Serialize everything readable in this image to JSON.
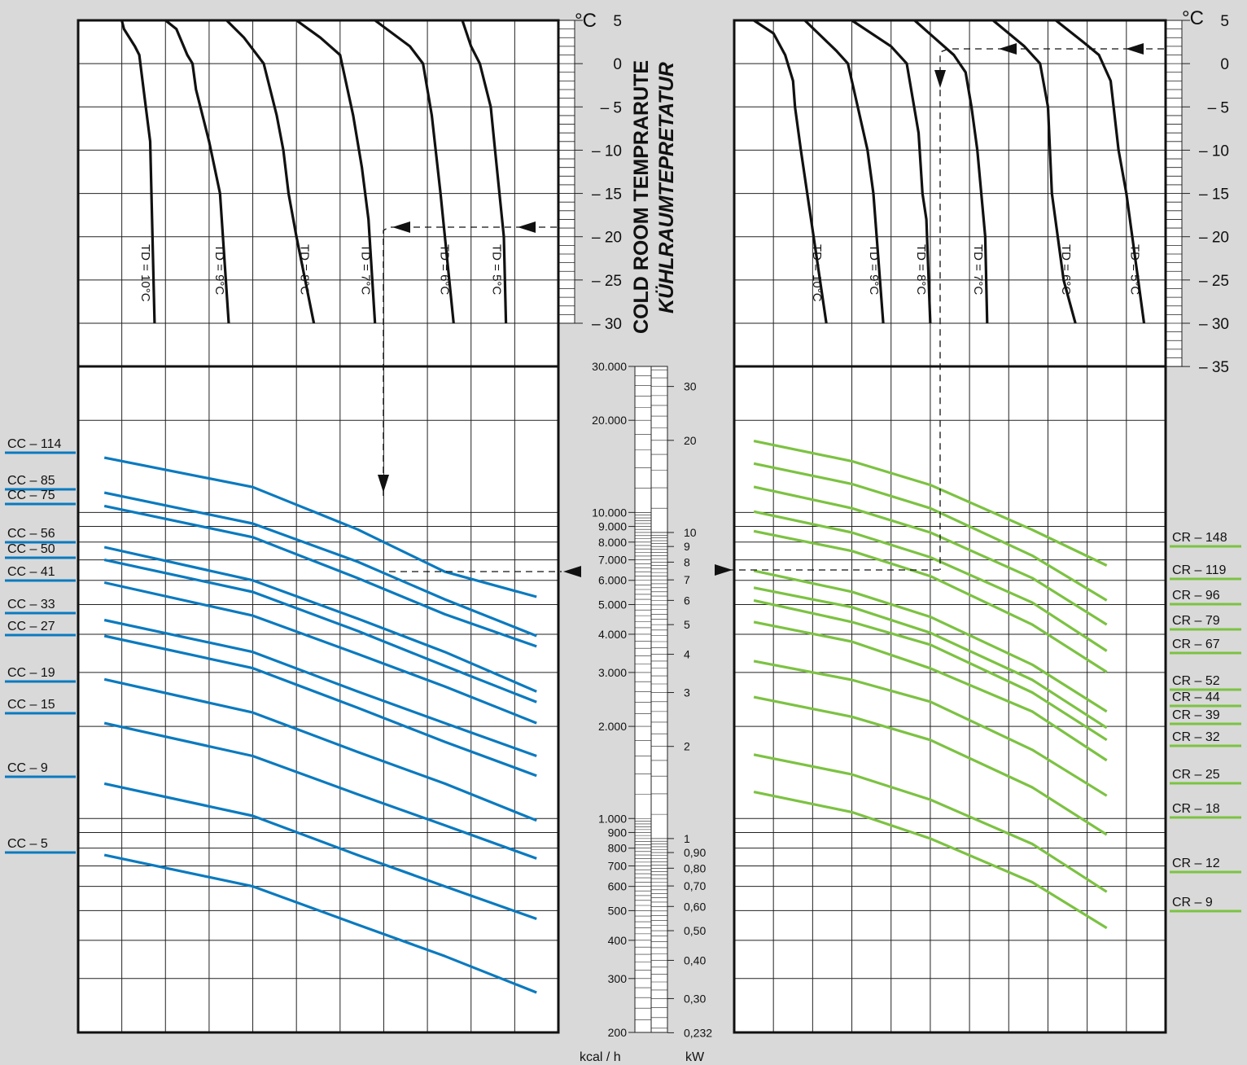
{
  "chart_data": [
    {
      "type": "line",
      "panel": "left",
      "unit_label": "°C",
      "title_line1": "COLD ROOM TEMPRARUTE",
      "title_line2": "KÜHLRAUMTEPRETATUR",
      "temp_ticks": [
        "5",
        "0",
        "– 5",
        "– 10",
        "– 15",
        "– 20",
        "– 25",
        "– 30"
      ],
      "temp_values": [
        5,
        0,
        -5,
        -10,
        -15,
        -20,
        -25,
        -30
      ],
      "td_curves": [
        {
          "label": "TD = 10°C",
          "points": [
            [
              1,
              5
            ],
            [
              1.05,
              4
            ],
            [
              1.3,
              2
            ],
            [
              1.4,
              1
            ],
            [
              1.55,
              -5
            ],
            [
              1.65,
              -9
            ],
            [
              1.75,
              -30
            ]
          ]
        },
        {
          "label": "TD = 9°C",
          "points": [
            [
              2,
              5
            ],
            [
              2.25,
              4
            ],
            [
              2.5,
              1
            ],
            [
              2.62,
              0
            ],
            [
              2.7,
              -3
            ],
            [
              3,
              -9
            ],
            [
              3.25,
              -15
            ],
            [
              3.45,
              -30
            ]
          ]
        },
        {
          "label": "TD = 8°C",
          "points": [
            [
              3.4,
              5
            ],
            [
              3.8,
              3
            ],
            [
              4.25,
              0
            ],
            [
              4.55,
              -6
            ],
            [
              4.7,
              -10
            ],
            [
              4.82,
              -15
            ],
            [
              5,
              -20
            ],
            [
              5.4,
              -30
            ]
          ]
        },
        {
          "label": "TD = 7°C",
          "points": [
            [
              5,
              5
            ],
            [
              5.55,
              3
            ],
            [
              6,
              1
            ],
            [
              6.3,
              -6
            ],
            [
              6.5,
              -12
            ],
            [
              6.65,
              -18
            ],
            [
              6.8,
              -30
            ]
          ]
        },
        {
          "label": "TD = 6°C",
          "points": [
            [
              6.8,
              5
            ],
            [
              7.6,
              2
            ],
            [
              7.9,
              0
            ],
            [
              8.1,
              -6
            ],
            [
              8.3,
              -15
            ],
            [
              8.6,
              -30
            ]
          ]
        },
        {
          "label": "TD = 5°C",
          "points": [
            [
              8.8,
              5
            ],
            [
              9,
              2
            ],
            [
              9.2,
              0
            ],
            [
              9.45,
              -5
            ],
            [
              9.55,
              -10
            ],
            [
              9.75,
              -20
            ],
            [
              9.8,
              -30
            ]
          ]
        }
      ],
      "capacity_axis_label": "kcal / h",
      "series": [
        {
          "name": "CC – 114",
          "values": [
            [
              0.6,
              15100
            ],
            [
              4,
              12100
            ],
            [
              6.4,
              8800
            ],
            [
              8.4,
              6400
            ],
            [
              10.5,
              5300
            ]
          ]
        },
        {
          "name": "CC – 85",
          "values": [
            [
              0.6,
              11600
            ],
            [
              4,
              9200
            ],
            [
              6.4,
              6900
            ],
            [
              8.4,
              5200
            ],
            [
              10.5,
              3950
            ]
          ]
        },
        {
          "name": "CC – 75",
          "values": [
            [
              0.6,
              10500
            ],
            [
              4,
              8300
            ],
            [
              6.4,
              6100
            ],
            [
              8.4,
              4650
            ],
            [
              10.5,
              3650
            ]
          ]
        },
        {
          "name": "CC – 56",
          "values": [
            [
              0.6,
              7700
            ],
            [
              4,
              6000
            ],
            [
              6.4,
              4500
            ],
            [
              8.4,
              3500
            ],
            [
              10.5,
              2600
            ]
          ]
        },
        {
          "name": "CC – 50",
          "values": [
            [
              0.6,
              7000
            ],
            [
              4,
              5500
            ],
            [
              6.4,
              4100
            ],
            [
              8.4,
              3150
            ],
            [
              10.5,
              2400
            ]
          ]
        },
        {
          "name": "CC – 41",
          "values": [
            [
              0.6,
              5900
            ],
            [
              4,
              4600
            ],
            [
              6.4,
              3450
            ],
            [
              8.4,
              2700
            ],
            [
              10.5,
              2050
            ]
          ]
        },
        {
          "name": "CC – 33",
          "values": [
            [
              0.6,
              4450
            ],
            [
              4,
              3500
            ],
            [
              6.4,
              2600
            ],
            [
              8.4,
              2050
            ],
            [
              10.5,
              1600
            ]
          ]
        },
        {
          "name": "CC – 27",
          "values": [
            [
              0.6,
              3950
            ],
            [
              4,
              3100
            ],
            [
              6.4,
              2300
            ],
            [
              8.4,
              1780
            ],
            [
              10.5,
              1380
            ]
          ]
        },
        {
          "name": "CC – 19",
          "values": [
            [
              0.6,
              2850
            ],
            [
              4,
              2220
            ],
            [
              6.4,
              1650
            ],
            [
              8.4,
              1300
            ],
            [
              10.5,
              985
            ]
          ]
        },
        {
          "name": "CC – 15",
          "values": [
            [
              0.6,
              2050
            ],
            [
              4,
              1600
            ],
            [
              6.4,
              1200
            ],
            [
              8.4,
              950
            ],
            [
              10.5,
              740
            ]
          ]
        },
        {
          "name": "CC – 9",
          "values": [
            [
              0.6,
              1300
            ],
            [
              4,
              1020
            ],
            [
              6.4,
              760
            ],
            [
              8.4,
              600
            ],
            [
              10.5,
              470
            ]
          ]
        },
        {
          "name": "CC – 5",
          "values": [
            [
              0.6,
              760
            ],
            [
              4,
              600
            ],
            [
              6.4,
              450
            ],
            [
              8.4,
              355
            ],
            [
              10.5,
              270
            ]
          ]
        }
      ]
    },
    {
      "type": "line",
      "panel": "right",
      "unit_label": "°C",
      "temp_ticks": [
        "5",
        "0",
        "– 5",
        "– 10",
        "– 15",
        "– 20",
        "– 25",
        "– 30",
        "– 35"
      ],
      "temp_values": [
        5,
        0,
        -5,
        -10,
        -15,
        -20,
        -25,
        -30,
        -35
      ],
      "td_curves": [
        {
          "label": "TD = 10°C",
          "points": [
            [
              0.5,
              5
            ],
            [
              1,
              3.5
            ],
            [
              1.3,
              1
            ],
            [
              1.5,
              -2
            ],
            [
              1.55,
              -5
            ],
            [
              1.7,
              -10
            ],
            [
              2.35,
              -30
            ]
          ]
        },
        {
          "label": "TD = 9°C",
          "points": [
            [
              1.8,
              5
            ],
            [
              2.6,
              1.5
            ],
            [
              2.9,
              0
            ],
            [
              3.1,
              -4
            ],
            [
              3.4,
              -10
            ],
            [
              3.55,
              -15
            ],
            [
              3.8,
              -30
            ]
          ]
        },
        {
          "label": "TD = 8°C",
          "points": [
            [
              3,
              5
            ],
            [
              4,
              2
            ],
            [
              4.4,
              0
            ],
            [
              4.7,
              -8
            ],
            [
              4.8,
              -15
            ],
            [
              4.9,
              -18
            ],
            [
              5,
              -30
            ]
          ]
        },
        {
          "label": "TD = 7°C",
          "points": [
            [
              4.6,
              5
            ],
            [
              5.6,
              1
            ],
            [
              5.9,
              -1
            ],
            [
              6.05,
              -5
            ],
            [
              6.2,
              -10
            ],
            [
              6.4,
              -20
            ],
            [
              6.45,
              -30
            ]
          ]
        },
        {
          "label": "TD = 6°C",
          "points": [
            [
              6.6,
              5
            ],
            [
              7.4,
              2
            ],
            [
              7.8,
              0
            ],
            [
              8,
              -5
            ],
            [
              8.1,
              -15
            ],
            [
              8.4,
              -25
            ],
            [
              8.7,
              -30
            ]
          ]
        },
        {
          "label": "TD = 5°C",
          "points": [
            [
              8.2,
              5
            ],
            [
              8.9,
              2.5
            ],
            [
              9.3,
              1
            ],
            [
              9.6,
              -2
            ],
            [
              9.8,
              -10
            ],
            [
              10,
              -15
            ],
            [
              10.3,
              -25
            ],
            [
              10.45,
              -30
            ]
          ]
        }
      ],
      "capacity_axis_label": "kW",
      "series": [
        {
          "name": "CR – 148",
          "values": [
            [
              0.5,
              19.9
            ],
            [
              3,
              17.1
            ],
            [
              5,
              14.3
            ],
            [
              7.6,
              10.2
            ],
            [
              9.5,
              7.8
            ]
          ]
        },
        {
          "name": "CR – 119",
          "values": [
            [
              0.5,
              16.8
            ],
            [
              3,
              14.4
            ],
            [
              5,
              12.0
            ],
            [
              7.6,
              8.4
            ],
            [
              9.5,
              6.0
            ]
          ]
        },
        {
          "name": "CR – 96",
          "values": [
            [
              0.5,
              14.1
            ],
            [
              3,
              12.0
            ],
            [
              5,
              10.0
            ],
            [
              7.6,
              7.1
            ],
            [
              9.5,
              5.0
            ]
          ]
        },
        {
          "name": "CR – 79",
          "values": [
            [
              0.5,
              11.7
            ],
            [
              3,
              10.0
            ],
            [
              5,
              8.3
            ],
            [
              7.6,
              5.9
            ],
            [
              9.5,
              4.1
            ]
          ]
        },
        {
          "name": "CR – 67",
          "values": [
            [
              0.5,
              10.1
            ],
            [
              3,
              8.7
            ],
            [
              5,
              7.2
            ],
            [
              7.6,
              5.0
            ],
            [
              9.5,
              3.5
            ]
          ]
        },
        {
          "name": "CR – 52",
          "values": [
            [
              0.5,
              7.5
            ],
            [
              3,
              6.4
            ],
            [
              5,
              5.3
            ],
            [
              7.6,
              3.7
            ],
            [
              9.5,
              2.6
            ]
          ]
        },
        {
          "name": "CR – 44",
          "values": [
            [
              0.5,
              6.6
            ],
            [
              3,
              5.7
            ],
            [
              5,
              4.7
            ],
            [
              7.6,
              3.3
            ],
            [
              9.5,
              2.3
            ]
          ]
        },
        {
          "name": "CR – 39",
          "values": [
            [
              0.5,
              6.0
            ],
            [
              3,
              5.1
            ],
            [
              5,
              4.3
            ],
            [
              7.6,
              3.0
            ],
            [
              9.5,
              2.1
            ]
          ]
        },
        {
          "name": "CR – 32",
          "values": [
            [
              0.5,
              5.1
            ],
            [
              3,
              4.4
            ],
            [
              5,
              3.6
            ],
            [
              7.6,
              2.6
            ],
            [
              9.5,
              1.8
            ]
          ]
        },
        {
          "name": "CR – 25",
          "values": [
            [
              0.5,
              3.8
            ],
            [
              3,
              3.3
            ],
            [
              5,
              2.8
            ],
            [
              7.6,
              1.95
            ],
            [
              9.5,
              1.38
            ]
          ]
        },
        {
          "name": "CR – 18",
          "values": [
            [
              0.5,
              2.9
            ],
            [
              3,
              2.5
            ],
            [
              5,
              2.1
            ],
            [
              7.6,
              1.47
            ],
            [
              9.5,
              1.03
            ]
          ]
        },
        {
          "name": "CR – 12",
          "values": [
            [
              0.5,
              1.88
            ],
            [
              3,
              1.62
            ],
            [
              5,
              1.34
            ],
            [
              7.6,
              0.96
            ],
            [
              9.5,
              0.67
            ]
          ]
        },
        {
          "name": "CR – 9",
          "values": [
            [
              0.5,
              1.42
            ],
            [
              3,
              1.22
            ],
            [
              5,
              1.0
            ],
            [
              7.6,
              0.72
            ],
            [
              9.5,
              0.51
            ]
          ]
        }
      ]
    }
  ],
  "center_scale": {
    "kcal_labels": [
      "30.000",
      "20.000",
      "10.000",
      "9.000",
      "8.000",
      "7.000",
      "6.000",
      "5.000",
      "4.000",
      "3.000",
      "2.000",
      "1.000",
      "900",
      "800",
      "700",
      "600",
      "500",
      "400",
      "300",
      "200"
    ],
    "kcal_values": [
      30000,
      20000,
      10000,
      9000,
      8000,
      7000,
      6000,
      5000,
      4000,
      3000,
      2000,
      1000,
      900,
      800,
      700,
      600,
      500,
      400,
      300,
      200
    ],
    "kw_labels": [
      "30",
      "20",
      "10",
      "9",
      "8",
      "7",
      "6",
      "5",
      "4",
      "3",
      "2",
      "1",
      "0,90",
      "0,80",
      "0,70",
      "0,60",
      "0,50",
      "0,40",
      "0,30",
      "0,232"
    ],
    "kw_values": [
      30,
      20,
      10,
      9,
      8,
      7,
      6,
      5,
      4,
      3,
      2,
      1,
      0.9,
      0.8,
      0.7,
      0.6,
      0.5,
      0.4,
      0.3,
      0.232
    ],
    "kcal_unit": "kcal / h",
    "kw_unit": "kW"
  },
  "colors": {
    "cc": "#0a7abf",
    "cr": "#7cc242",
    "td": "#111111",
    "background": "#d9d9d9"
  }
}
